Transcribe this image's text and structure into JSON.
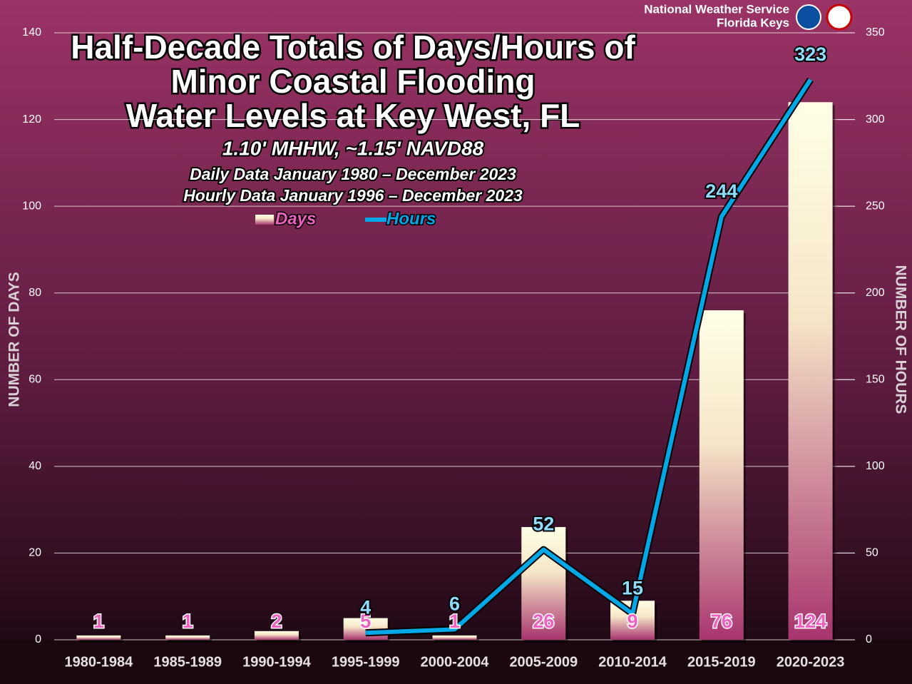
{
  "chart_data": {
    "type": "bar-line",
    "attribution": [
      "National Weather Service",
      "Florida Keys"
    ],
    "title": [
      "Half-Decade Totals of Days/Hours of",
      "Minor Coastal Flooding",
      "Water Levels at Key West, FL"
    ],
    "subtitle": "1.10' MHHW, ~1.15' NAVD88",
    "notes": [
      "Daily Data January 1980 – December 2023",
      "Hourly Data January 1996 – December 2023"
    ],
    "y_label": "NUMBER OF DAYS",
    "y2_label": "NUMBER OF HOURS",
    "categories": [
      "1980-1984",
      "1985-1989",
      "1990-1994",
      "1995-1999",
      "2000-2004",
      "2005-2009",
      "2010-2014",
      "2015-2019",
      "2020-2023"
    ],
    "series": [
      {
        "name": "Days",
        "type": "bar",
        "color": "#a8346e",
        "values": [
          1,
          1,
          2,
          5,
          1,
          26,
          9,
          76,
          124
        ]
      },
      {
        "name": "Hours",
        "type": "line",
        "axis": "y2",
        "color": "#00a8e8",
        "values": [
          null,
          null,
          null,
          4,
          6,
          52,
          15,
          244,
          323
        ]
      }
    ],
    "ylim": [
      0,
      140
    ],
    "yticks": [
      0,
      20,
      40,
      60,
      80,
      100,
      120,
      140
    ],
    "y2lim": [
      0,
      350
    ],
    "y2ticks": [
      0,
      50,
      100,
      150,
      200,
      250,
      300,
      350
    ],
    "grid": true,
    "legend": "top"
  }
}
